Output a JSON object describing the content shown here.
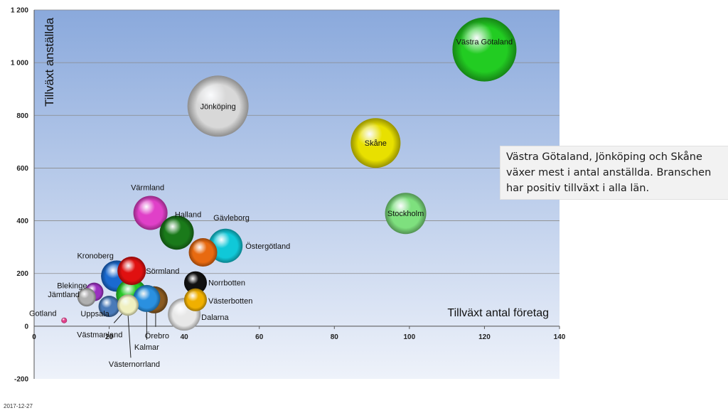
{
  "chart_data": {
    "type": "bubble",
    "xlabel": "Tillväxt antal företag",
    "ylabel": "Tillväxt anställda",
    "xlim": [
      0,
      140
    ],
    "ylim": [
      -200,
      1200
    ],
    "x_ticks": [
      "0",
      "20",
      "40",
      "60",
      "80",
      "100",
      "120",
      "140"
    ],
    "y_ticks": [
      "-200",
      "0",
      "200",
      "400",
      "600",
      "800",
      "1 000",
      "1 200"
    ],
    "grid": "horizontal",
    "points": [
      {
        "name": "Västra Götaland",
        "x": 120,
        "y": 1050,
        "size": 45,
        "color": "#22cc22"
      },
      {
        "name": "Jönköping",
        "x": 49,
        "y": 835,
        "size": 43,
        "color": "#d8d8d8"
      },
      {
        "name": "Skåne",
        "x": 91,
        "y": 695,
        "size": 35,
        "color": "#e8e000"
      },
      {
        "name": "Stockholm",
        "x": 99,
        "y": 428,
        "size": 29,
        "color": "#7ee07e"
      },
      {
        "name": "Värmland",
        "x": 31,
        "y": 430,
        "size": 24,
        "color": "#e040c8"
      },
      {
        "name": "Halland",
        "x": 38,
        "y": 355,
        "size": 24,
        "color": "#1a7a1a"
      },
      {
        "name": "Östergötland",
        "x": 51,
        "y": 305,
        "size": 24,
        "color": "#10c8d8"
      },
      {
        "name": "Gävleborg",
        "x": 45,
        "y": 280,
        "size": 20,
        "color": "#e86a10"
      },
      {
        "name": "Kronoberg",
        "x": 22,
        "y": 190,
        "size": 22,
        "color": "#1a6ad0"
      },
      {
        "name": "Sörmland",
        "x": 26,
        "y": 210,
        "size": 20,
        "color": "#e01010"
      },
      {
        "name": "Norrbotten",
        "x": 43,
        "y": 165,
        "size": 16,
        "color": "#111111"
      },
      {
        "name": "Blekinge",
        "x": 16,
        "y": 130,
        "size": 13,
        "color": "#9a30c0"
      },
      {
        "name": "Västerbotten",
        "x": 43,
        "y": 100,
        "size": 16,
        "color": "#f0b000"
      },
      {
        "name": "Jämtland",
        "x": 14,
        "y": 110,
        "size": 13,
        "color": "#b0b0b0"
      },
      {
        "name": "Västmanland",
        "x": 26,
        "y": 120,
        "size": 22,
        "color": "#28c828"
      },
      {
        "name": "Örebro",
        "x": 32,
        "y": 100,
        "size": 19,
        "color": "#8a5a20"
      },
      {
        "name": "Kalmar",
        "x": 30,
        "y": 105,
        "size": 19,
        "color": "#2a90e0"
      },
      {
        "name": "Uppsala",
        "x": 20,
        "y": 75,
        "size": 15,
        "color": "#4a7ab8"
      },
      {
        "name": "Västernorrland",
        "x": 25,
        "y": 80,
        "size": 15,
        "color": "#f0f0c0"
      },
      {
        "name": "Dalarna",
        "x": 40,
        "y": 45,
        "size": 23,
        "color": "#e8e8e8"
      },
      {
        "name": "Gotland",
        "x": 8,
        "y": 22,
        "size": 4,
        "color": "#e0408a"
      }
    ]
  },
  "annotation": "Västra Götaland, Jönköping och Skåne växer mest i antal anställda. Branschen har positiv tillväxt i alla län.",
  "footer_date": "2017-12-27",
  "colors": {
    "plot_top": "#8aa9dc",
    "plot_bottom": "#eef2fa",
    "gridline": "#8a8a8a"
  }
}
